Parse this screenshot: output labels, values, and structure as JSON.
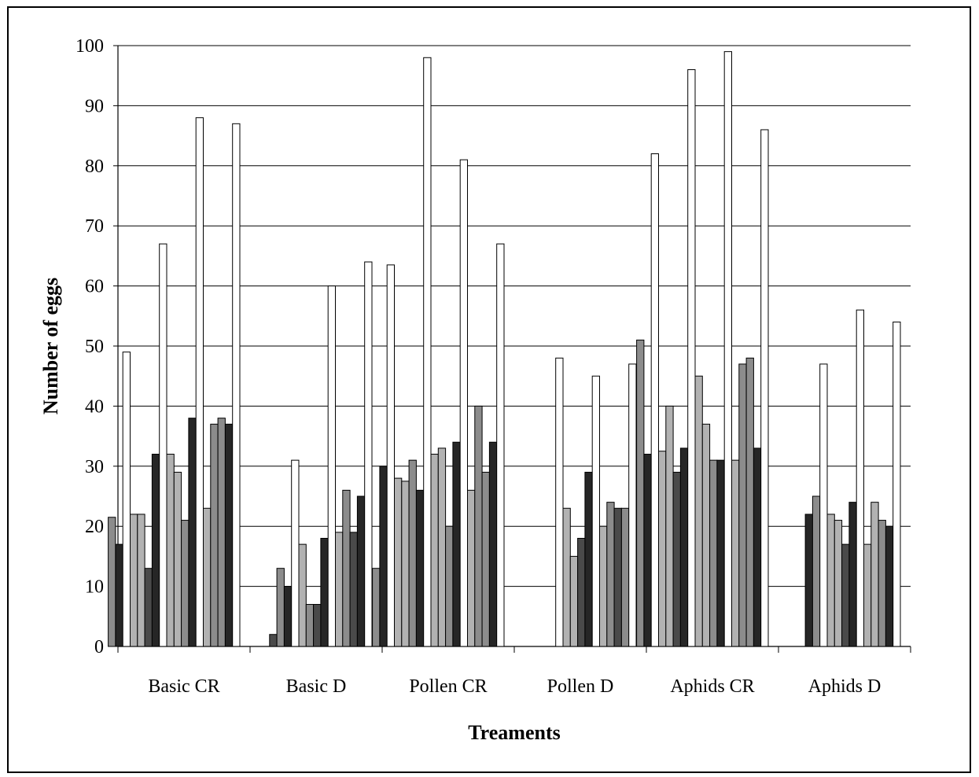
{
  "chart_data": {
    "type": "bar",
    "title": "",
    "xlabel": "Treaments",
    "ylabel": "Number of eggs",
    "ylim": [
      0,
      100
    ],
    "yticks": [
      "0",
      "10",
      "20",
      "30",
      "40",
      "50",
      "60",
      "70",
      "80",
      "90",
      "100"
    ],
    "grid": "horizontal",
    "legend": "none",
    "categories": [
      "Basic CR",
      "Basic D",
      "Pollen CR",
      "Pollen D",
      "Aphids CR",
      "Aphids D"
    ],
    "bar_colors": [
      "#595959",
      "#262626",
      "#ffffff",
      "#b2b2b2",
      "#8c8c8c",
      "#4a4a4a"
    ],
    "groups": [
      [
        21.5,
        17,
        49,
        22,
        22,
        13,
        32,
        67,
        32,
        29,
        21,
        38,
        88,
        23,
        37,
        38,
        37,
        87
      ],
      [
        0,
        2,
        13,
        10,
        31,
        17,
        7,
        7,
        18,
        60,
        19,
        26,
        19,
        25,
        64
      ],
      [
        13,
        30,
        63.5,
        28,
        27.5,
        31,
        26,
        98,
        32,
        33,
        20,
        34,
        81,
        26,
        40,
        29,
        34,
        67
      ],
      [
        48,
        23,
        15,
        18,
        29,
        45,
        20,
        24,
        23,
        23,
        47
      ],
      [
        51,
        32,
        82,
        32.5,
        40,
        29,
        33,
        96,
        45,
        37,
        31,
        31,
        99,
        31,
        47,
        48,
        33,
        86
      ],
      [
        22,
        25,
        47,
        22,
        21,
        17,
        24,
        56,
        17,
        24,
        21,
        20,
        54
      ]
    ],
    "group_colors": [
      [
        4,
        1,
        2,
        3,
        3,
        5,
        1,
        2,
        3,
        3,
        4,
        1,
        2,
        3,
        4,
        4,
        1,
        2
      ],
      [
        4,
        5,
        4,
        1,
        2,
        3,
        4,
        5,
        1,
        2,
        3,
        4,
        5,
        1,
        2
      ],
      [
        4,
        1,
        2,
        3,
        3,
        4,
        1,
        2,
        3,
        3,
        4,
        1,
        2,
        3,
        4,
        4,
        1,
        2
      ],
      [
        2,
        3,
        3,
        5,
        1,
        2,
        3,
        4,
        5,
        4,
        2
      ],
      [
        4,
        1,
        2,
        3,
        3,
        5,
        1,
        2,
        3,
        3,
        4,
        1,
        2,
        3,
        4,
        4,
        1,
        2
      ],
      [
        1,
        4,
        2,
        3,
        3,
        5,
        1,
        2,
        3,
        3,
        4,
        1,
        2
      ]
    ]
  }
}
